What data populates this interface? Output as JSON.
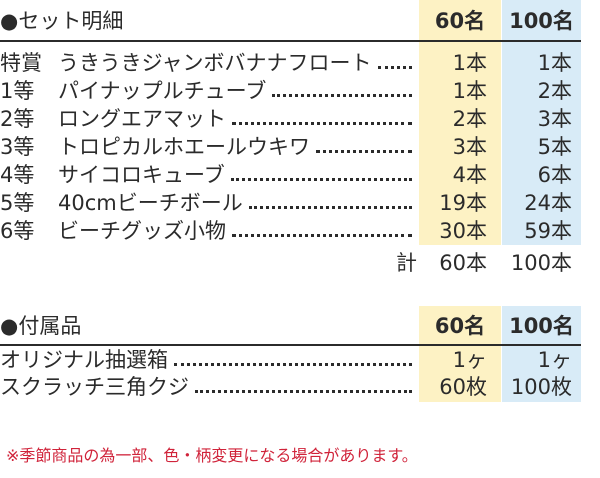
{
  "set_section": {
    "title": "●セット明細",
    "col60": "60名",
    "col100": "100名",
    "rows": [
      {
        "rank": "特賞",
        "name": "うきうきジャンボバナナフロート",
        "v60": "1本",
        "v100": "1本"
      },
      {
        "rank": "1等",
        "name": "パイナップルチューブ",
        "v60": "1本",
        "v100": "2本"
      },
      {
        "rank": "2等",
        "name": "ロングエアマット",
        "v60": "2本",
        "v100": "3本"
      },
      {
        "rank": "3等",
        "name": "トロピカルホエールウキワ",
        "v60": "3本",
        "v100": "5本"
      },
      {
        "rank": "4等",
        "name": "サイコロキューブ",
        "v60": "4本",
        "v100": "6本"
      },
      {
        "rank": "5等",
        "name": "40cmビーチボール",
        "v60": "19本",
        "v100": "24本"
      },
      {
        "rank": "6等",
        "name": "ビーチグッズ小物",
        "v60": "30本",
        "v100": "59本"
      }
    ],
    "total": {
      "label": "計",
      "v60": "60本",
      "v100": "100本"
    }
  },
  "accessory_section": {
    "title": "●付属品",
    "col60": "60名",
    "col100": "100名",
    "rows": [
      {
        "name": "オリジナル抽選箱",
        "v60": "1ヶ",
        "v100": "1ヶ"
      },
      {
        "name": "スクラッチ三角クジ",
        "v60": "60枚",
        "v100": "100枚"
      }
    ]
  },
  "note": "※季節商品の為一部、色・柄変更になる場合があります。"
}
